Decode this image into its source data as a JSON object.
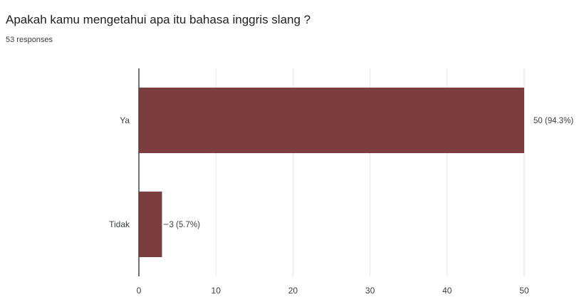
{
  "question": "Apakah kamu mengetahui apa itu bahasa inggris slang ?",
  "response_count": "53 responses",
  "colors": {
    "bar": "#7b3d3d",
    "grid": "#e6e6e6",
    "axis": "#444444"
  },
  "chart_data": {
    "type": "bar",
    "orientation": "horizontal",
    "title": "",
    "xlabel": "",
    "ylabel": "",
    "categories": [
      "Ya",
      "Tidak"
    ],
    "values": [
      50,
      3
    ],
    "data_labels": [
      "50 (94.3%)",
      "3 (5.7%)"
    ],
    "xlim": [
      0,
      50
    ],
    "x_ticks": [
      0,
      10,
      20,
      30,
      40,
      50
    ],
    "grid": true,
    "legend": "none"
  }
}
